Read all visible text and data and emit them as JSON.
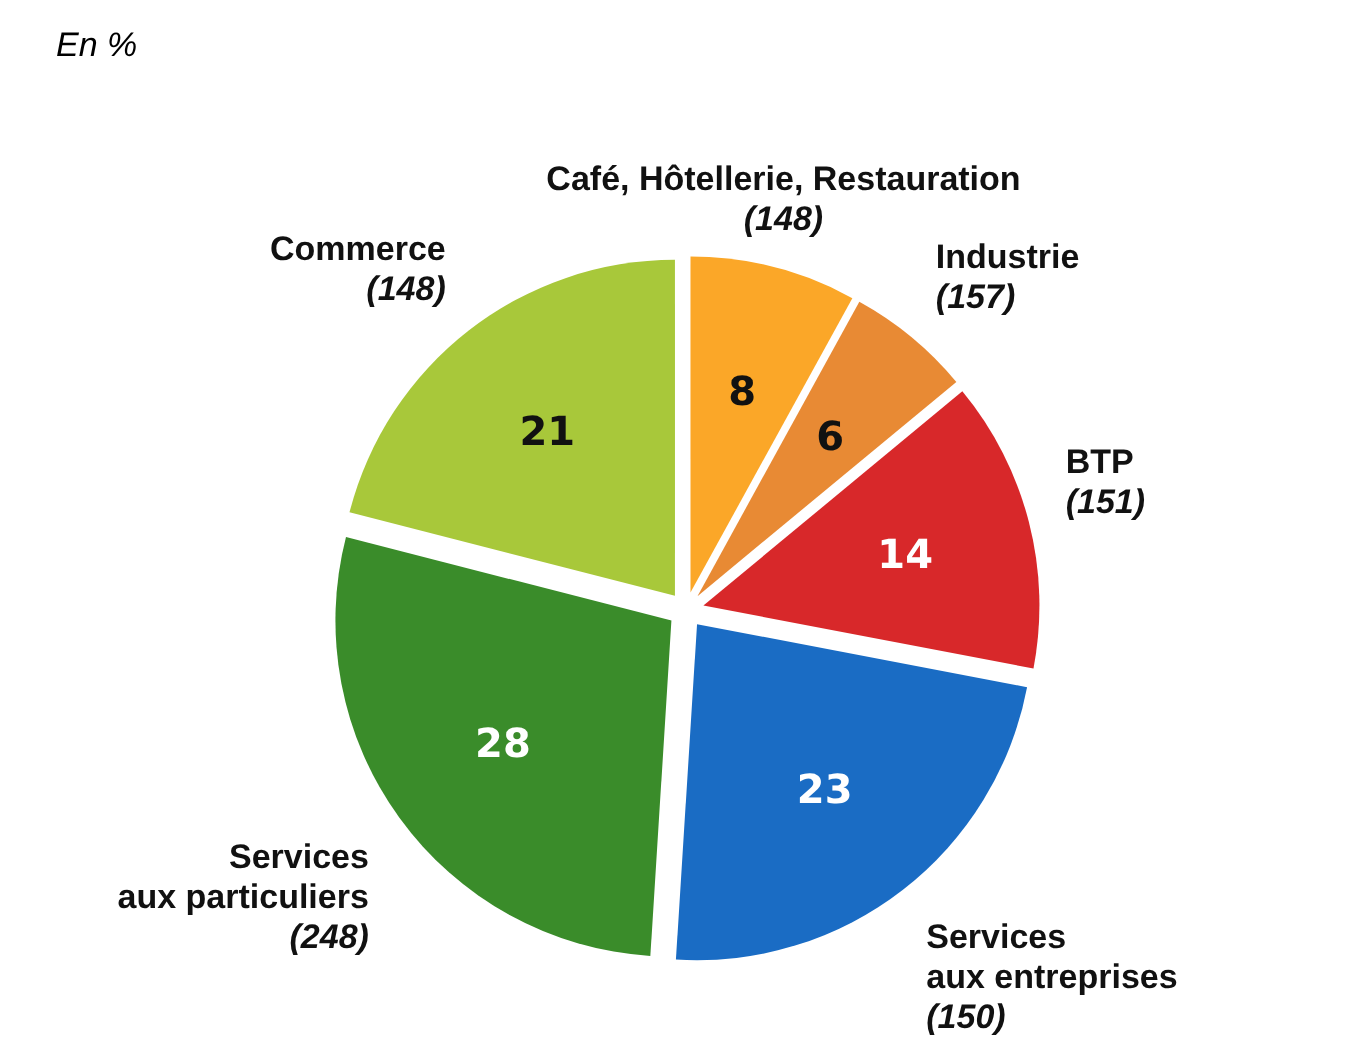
{
  "chart_data": {
    "type": "pie",
    "subtitle": "En %",
    "categories": [
      "Café, Hôtellerie, Restauration",
      "Industrie",
      "BTP",
      "Services\naux entreprises",
      "Services\naux particuliers",
      "Commerce"
    ],
    "values": [
      8,
      6,
      14,
      23,
      28,
      21
    ],
    "colors": [
      "#fba728",
      "#e88a34",
      "#d8282a",
      "#1a6cc4",
      "#3a8c2a",
      "#a8c83a"
    ],
    "data_labels": true,
    "annotations": [
      "(148)",
      "(157)",
      "(151)",
      "(150)",
      "(248)",
      "(148)"
    ]
  }
}
